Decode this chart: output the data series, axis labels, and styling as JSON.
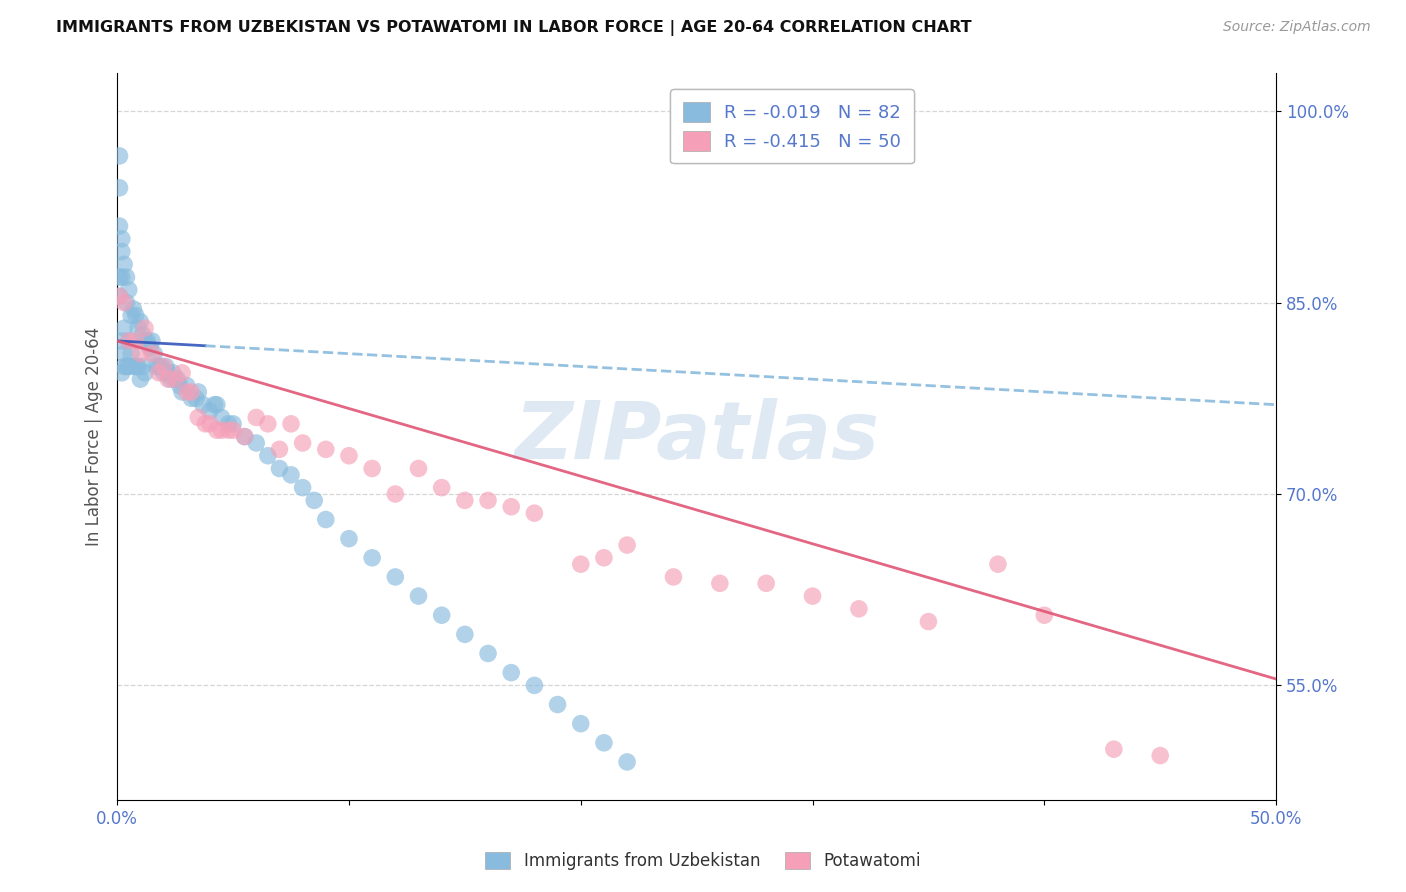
{
  "title": "IMMIGRANTS FROM UZBEKISTAN VS POTAWATOMI IN LABOR FORCE | AGE 20-64 CORRELATION CHART",
  "source": "Source: ZipAtlas.com",
  "ylabel": "In Labor Force | Age 20-64",
  "xlim": [
    0.0,
    0.5
  ],
  "ylim": [
    0.46,
    1.03
  ],
  "yticks": [
    0.55,
    0.7,
    0.85,
    1.0
  ],
  "ytick_labels": [
    "55.0%",
    "70.0%",
    "85.0%",
    "100.0%"
  ],
  "xtick_labels": [
    "0.0%",
    "",
    "",
    "",
    "",
    "50.0%"
  ],
  "legend_r1": "-0.019",
  "legend_n1": "82",
  "legend_r2": "-0.415",
  "legend_n2": "50",
  "color_uzbek": "#88bbdd",
  "color_potawatomi": "#f5a0b8",
  "color_uzbek_line_solid": "#3355bb",
  "color_uzbek_line_dash": "#88bbdd",
  "color_potawatomi_line": "#e05575",
  "background_color": "#ffffff",
  "watermark": "ZIPatlas",
  "watermark_color": "#c5d8ea",
  "grid_color": "#cccccc",
  "tick_color": "#5577cc",
  "title_color": "#111111",
  "source_color": "#999999",
  "uzbek_x": [
    0.001,
    0.001,
    0.001,
    0.001,
    0.001,
    0.002,
    0.002,
    0.002,
    0.002,
    0.002,
    0.003,
    0.003,
    0.003,
    0.003,
    0.004,
    0.004,
    0.004,
    0.005,
    0.005,
    0.005,
    0.006,
    0.006,
    0.007,
    0.007,
    0.008,
    0.008,
    0.009,
    0.009,
    0.01,
    0.01,
    0.011,
    0.011,
    0.012,
    0.012,
    0.013,
    0.014,
    0.015,
    0.016,
    0.017,
    0.018,
    0.019,
    0.02,
    0.021,
    0.022,
    0.023,
    0.024,
    0.025,
    0.026,
    0.027,
    0.028,
    0.03,
    0.032,
    0.034,
    0.035,
    0.037,
    0.04,
    0.042,
    0.043,
    0.045,
    0.048,
    0.05,
    0.055,
    0.06,
    0.065,
    0.07,
    0.075,
    0.08,
    0.085,
    0.09,
    0.1,
    0.11,
    0.12,
    0.13,
    0.14,
    0.15,
    0.16,
    0.17,
    0.18,
    0.19,
    0.2,
    0.21,
    0.22
  ],
  "uzbek_y": [
    0.965,
    0.94,
    0.91,
    0.87,
    0.855,
    0.9,
    0.89,
    0.87,
    0.82,
    0.795,
    0.88,
    0.83,
    0.81,
    0.8,
    0.87,
    0.85,
    0.8,
    0.86,
    0.82,
    0.8,
    0.84,
    0.81,
    0.845,
    0.8,
    0.84,
    0.8,
    0.83,
    0.8,
    0.835,
    0.79,
    0.825,
    0.8,
    0.82,
    0.795,
    0.82,
    0.815,
    0.82,
    0.81,
    0.8,
    0.8,
    0.8,
    0.795,
    0.8,
    0.795,
    0.79,
    0.795,
    0.79,
    0.79,
    0.785,
    0.78,
    0.785,
    0.775,
    0.775,
    0.78,
    0.77,
    0.765,
    0.77,
    0.77,
    0.76,
    0.755,
    0.755,
    0.745,
    0.74,
    0.73,
    0.72,
    0.715,
    0.705,
    0.695,
    0.68,
    0.665,
    0.65,
    0.635,
    0.62,
    0.605,
    0.59,
    0.575,
    0.56,
    0.55,
    0.535,
    0.52,
    0.505,
    0.49
  ],
  "potawatomi_x": [
    0.001,
    0.003,
    0.005,
    0.008,
    0.01,
    0.012,
    0.015,
    0.018,
    0.02,
    0.022,
    0.025,
    0.028,
    0.03,
    0.032,
    0.035,
    0.038,
    0.04,
    0.043,
    0.045,
    0.048,
    0.05,
    0.055,
    0.06,
    0.065,
    0.07,
    0.075,
    0.08,
    0.09,
    0.1,
    0.11,
    0.12,
    0.13,
    0.14,
    0.15,
    0.16,
    0.17,
    0.18,
    0.2,
    0.21,
    0.22,
    0.24,
    0.26,
    0.28,
    0.3,
    0.32,
    0.35,
    0.38,
    0.4,
    0.43,
    0.45
  ],
  "potawatomi_y": [
    0.855,
    0.85,
    0.82,
    0.82,
    0.81,
    0.83,
    0.81,
    0.795,
    0.8,
    0.79,
    0.79,
    0.795,
    0.78,
    0.78,
    0.76,
    0.755,
    0.755,
    0.75,
    0.75,
    0.75,
    0.75,
    0.745,
    0.76,
    0.755,
    0.735,
    0.755,
    0.74,
    0.735,
    0.73,
    0.72,
    0.7,
    0.72,
    0.705,
    0.695,
    0.695,
    0.69,
    0.685,
    0.645,
    0.65,
    0.66,
    0.635,
    0.63,
    0.63,
    0.62,
    0.61,
    0.6,
    0.645,
    0.605,
    0.5,
    0.495
  ],
  "uzbek_line_x0": 0.0,
  "uzbek_line_x1": 0.5,
  "uzbek_line_y0": 0.82,
  "uzbek_line_y1": 0.77,
  "pota_line_x0": 0.0,
  "pota_line_x1": 0.5,
  "pota_line_y0": 0.82,
  "pota_line_y1": 0.555
}
